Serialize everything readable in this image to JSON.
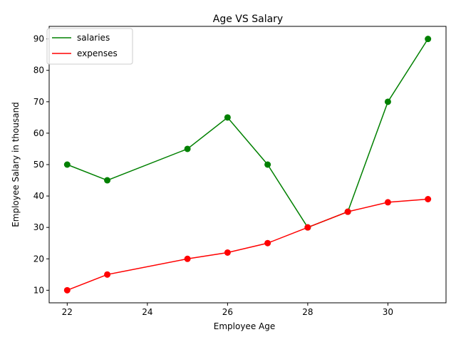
{
  "chart_data": {
    "type": "line",
    "title": "Age VS Salary",
    "xlabel": "Employee Age",
    "ylabel": "Employee Salary in thousand",
    "xlim": [
      21.55,
      31.45
    ],
    "ylim": [
      6,
      94
    ],
    "xticks": [
      22,
      24,
      26,
      28,
      30
    ],
    "yticks": [
      10,
      20,
      30,
      40,
      50,
      60,
      70,
      80,
      90
    ],
    "grid": false,
    "legend_position": "top-left",
    "series": [
      {
        "name": "salaries",
        "line_color": "#008000",
        "marker_color": "#008000",
        "x": [
          22,
          23,
          25,
          26,
          27,
          28,
          29,
          30,
          31
        ],
        "y": [
          50,
          45,
          55,
          65,
          50,
          30,
          35,
          70,
          90
        ]
      },
      {
        "name": "expenses",
        "line_color": "#ff0000",
        "marker_color": "#ff0000",
        "x": [
          22,
          23,
          25,
          26,
          27,
          28,
          29,
          30,
          31
        ],
        "y": [
          10,
          15,
          20,
          22,
          25,
          30,
          35,
          38,
          39
        ]
      }
    ]
  }
}
